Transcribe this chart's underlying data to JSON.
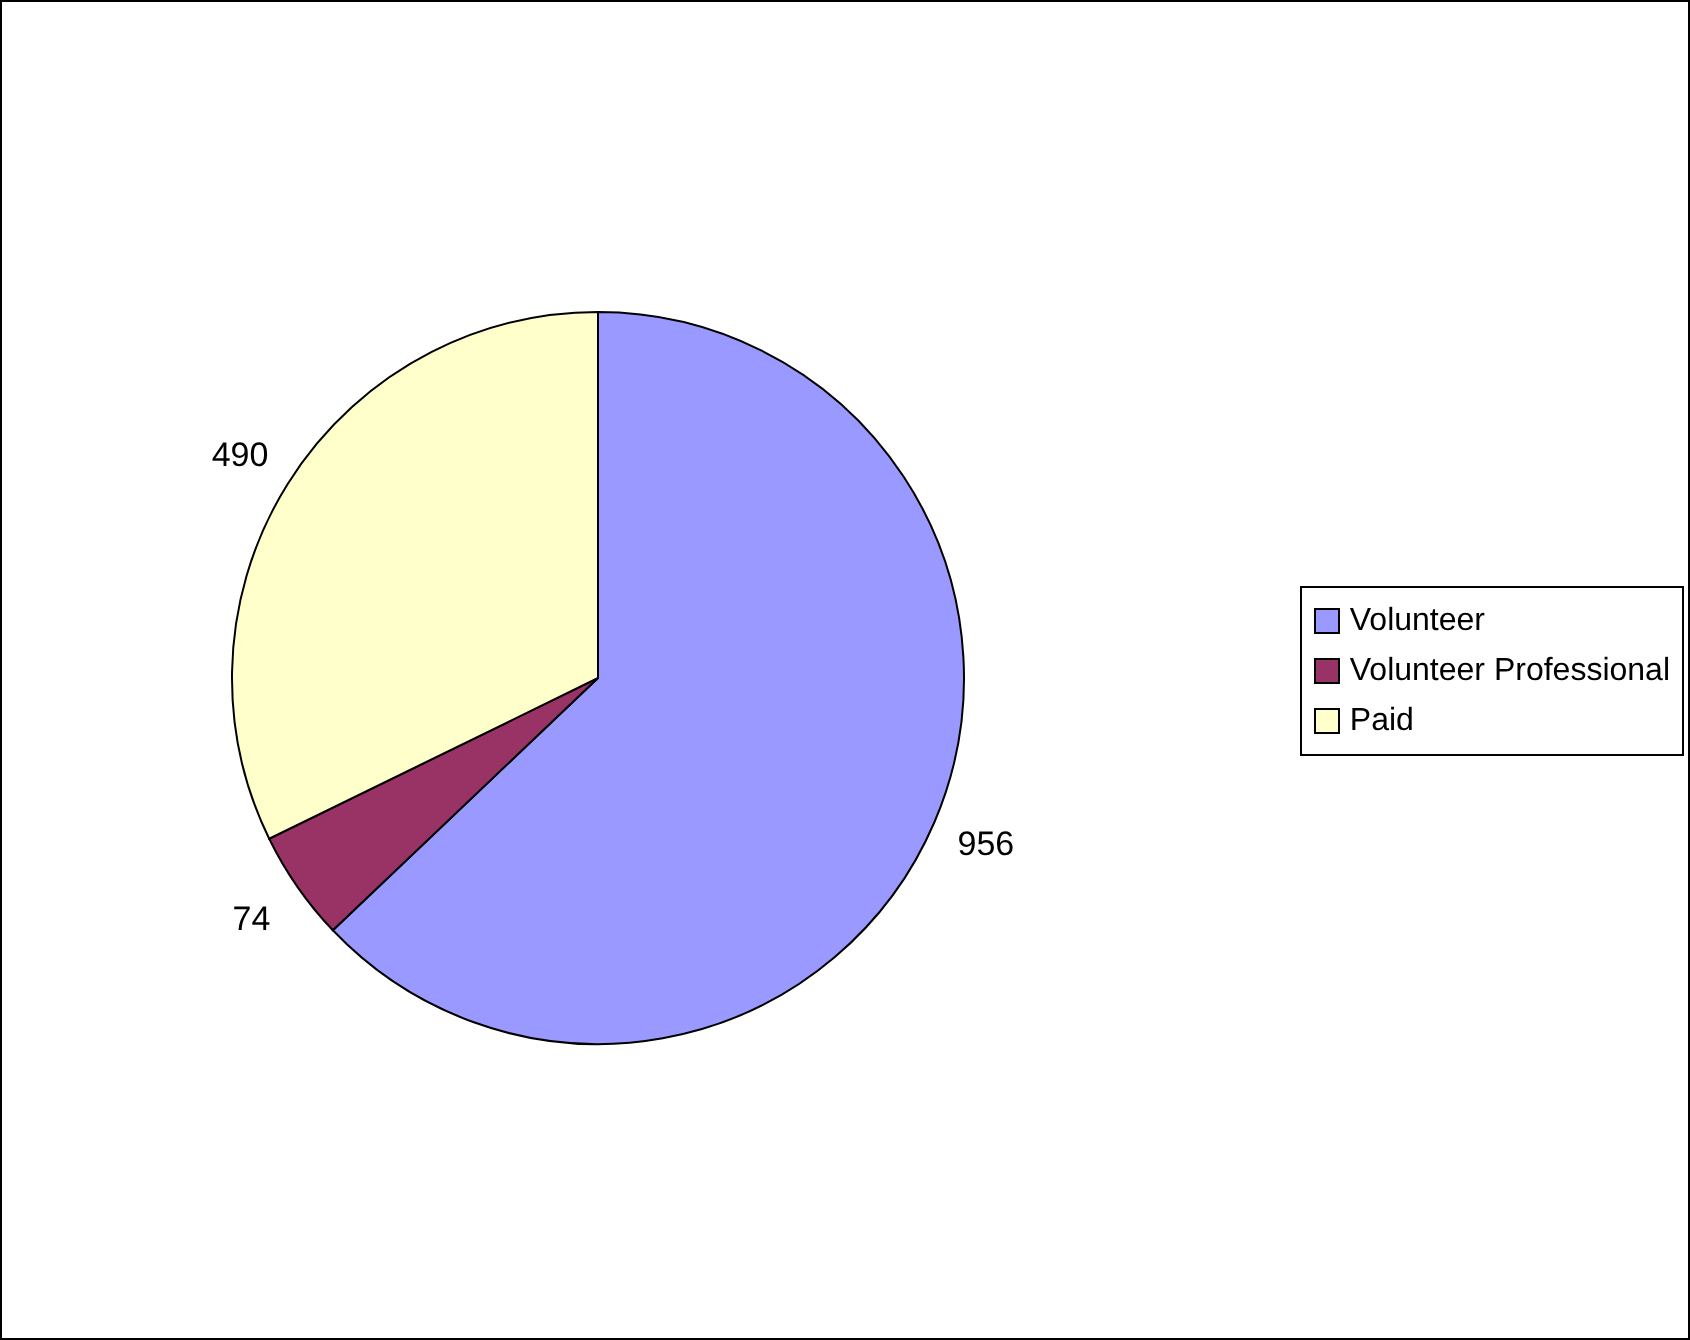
{
  "chart_data": {
    "type": "pie",
    "categories": [
      "Volunteer",
      "Volunteer Professional",
      "Paid"
    ],
    "values": [
      956,
      74,
      490
    ],
    "colors": [
      "#9999ff",
      "#993366",
      "#ffffcc"
    ],
    "data_labels": true,
    "legend": "right"
  }
}
